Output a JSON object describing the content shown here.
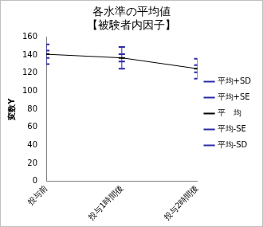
{
  "chart_data": {
    "type": "line",
    "title": "各水準の平均値",
    "subtitle": "【被験者内因子】",
    "y_label": "変数Y",
    "categories": [
      "投与前",
      "投与1時間後",
      "投与2時間後"
    ],
    "series": [
      {
        "name": "平均+SD",
        "color": "#2a2aa8",
        "values": [
          152,
          149,
          136
        ],
        "marker": "dash",
        "line_style": "none"
      },
      {
        "name": "平均+SE",
        "color": "#2a2aa8",
        "values": [
          145,
          141,
          129
        ],
        "marker": "dash",
        "line_style": "none"
      },
      {
        "name": "平　均",
        "color": "#000000",
        "values": [
          141,
          137,
          125
        ],
        "marker": "dash",
        "line_style": "solid"
      },
      {
        "name": "平均-SE",
        "color": "#2a2aa8",
        "values": [
          137,
          133,
          121
        ],
        "marker": "dash",
        "line_style": "none"
      },
      {
        "name": "平均-SD",
        "color": "#2a2aa8",
        "values": [
          130,
          125,
          114
        ],
        "marker": "dash",
        "line_style": "none"
      }
    ],
    "ylim": [
      0,
      160
    ],
    "yticks": [
      0,
      20,
      40,
      60,
      80,
      100,
      120,
      140,
      160
    ],
    "grid": false,
    "legend": "right"
  }
}
